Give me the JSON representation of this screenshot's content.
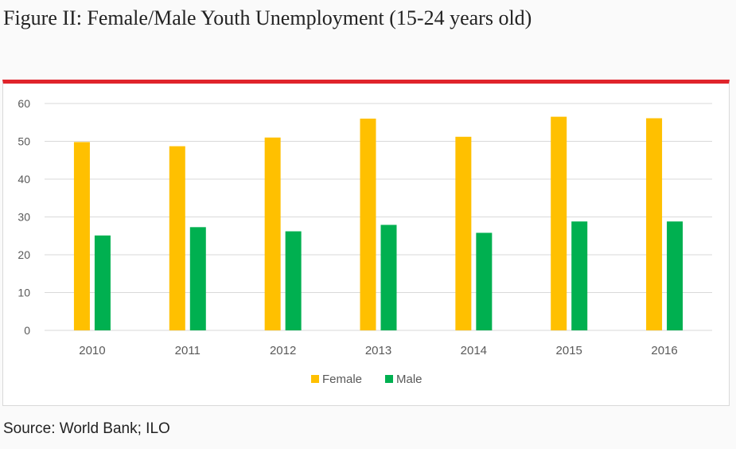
{
  "figure_title": "Figure II: Female/Male Youth Unemployment (15-24 years old)",
  "source": "Source: World Bank; ILO",
  "colors": {
    "female": "#ffc000",
    "male": "#00b050",
    "accent_rule": "#e0242b",
    "grid": "#d9d9d9"
  },
  "chart_data": {
    "type": "bar",
    "title": "",
    "xlabel": "",
    "ylabel": "",
    "categories": [
      "2010",
      "2011",
      "2012",
      "2013",
      "2014",
      "2015",
      "2016"
    ],
    "series": [
      {
        "name": "Female",
        "values": [
          49.8,
          48.7,
          51.0,
          56.0,
          51.2,
          56.5,
          56.1
        ]
      },
      {
        "name": "Male",
        "values": [
          25.1,
          27.3,
          26.2,
          27.9,
          25.8,
          28.8,
          28.8
        ]
      }
    ],
    "ylim": [
      0,
      60
    ],
    "yticks": [
      0,
      10,
      20,
      30,
      40,
      50,
      60
    ],
    "grid": true,
    "legend_position": "bottom"
  }
}
